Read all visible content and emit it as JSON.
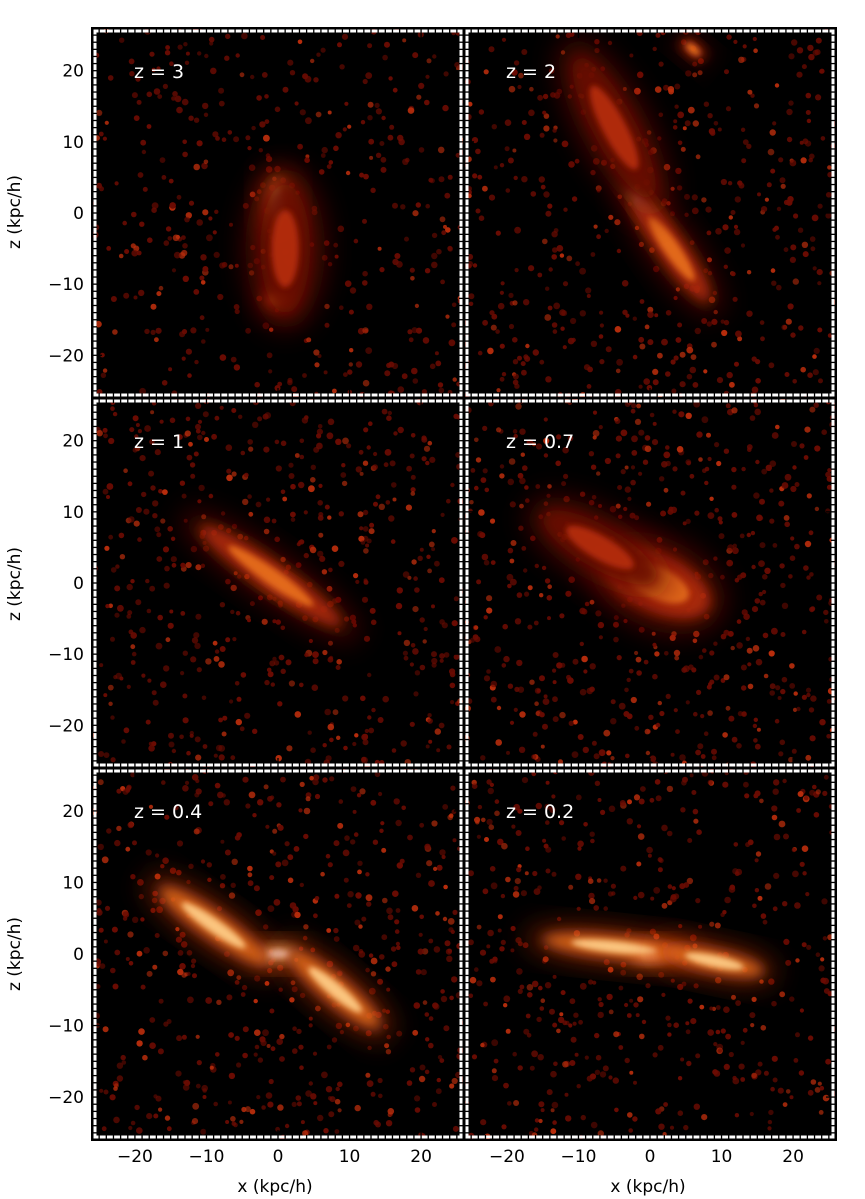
{
  "figure": {
    "xlabel": "x (kpc/h)",
    "ylabel": "z (kpc/h)",
    "xlim": [
      -26,
      26
    ],
    "ylim": [
      -26,
      26
    ],
    "xticks": [
      -20,
      -10,
      0,
      10,
      20
    ],
    "yticks": [
      -20,
      -10,
      0,
      10,
      20
    ],
    "colormap": [
      "#000000",
      "#6b0b02",
      "#b82d0c",
      "#e8701f",
      "#ffd08a",
      "#ffffff"
    ]
  },
  "panels": [
    {
      "label": "z = 3"
    },
    {
      "label": "z = 2"
    },
    {
      "label": "z = 1"
    },
    {
      "label": "z = 0.7"
    },
    {
      "label": "z = 0.4"
    },
    {
      "label": "z = 0.2"
    }
  ]
}
